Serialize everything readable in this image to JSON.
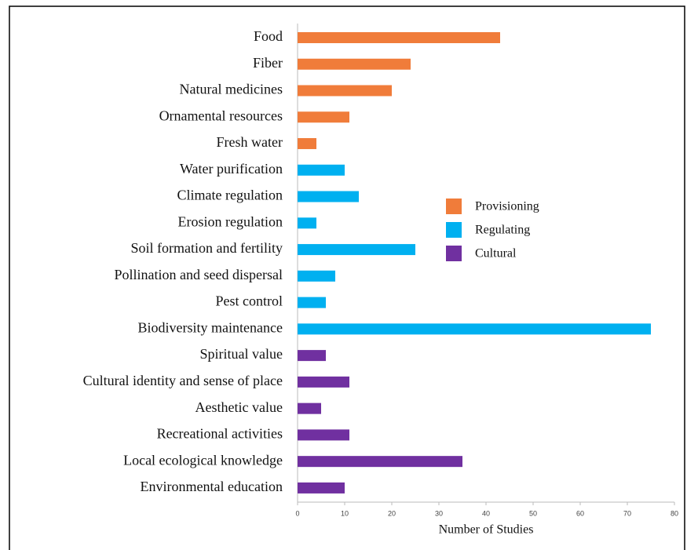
{
  "chart_data": {
    "type": "barh",
    "xlabel": "Number of Studies",
    "categories": [
      "Food",
      "Fiber",
      "Natural medicines",
      "Ornamental resources",
      "Fresh water",
      "Water purification",
      "Climate regulation",
      "Erosion regulation",
      "Soil formation and fertility",
      "Pollination and seed dispersal",
      "Pest control",
      "Biodiversity maintenance",
      "Spiritual value",
      "Cultural identity and sense of place",
      "Aesthetic value",
      "Recreational activities",
      "Local ecological knowledge",
      "Environmental education"
    ],
    "series": [
      {
        "name": "Provisioning",
        "color": "#f07c3a",
        "values": [
          43,
          24,
          20,
          11,
          4,
          null,
          null,
          null,
          null,
          null,
          null,
          null,
          null,
          null,
          null,
          null,
          null,
          null
        ]
      },
      {
        "name": "Regulating",
        "color": "#00b0f0",
        "values": [
          null,
          null,
          null,
          null,
          null,
          10,
          13,
          4,
          25,
          8,
          6,
          75,
          null,
          null,
          null,
          null,
          null,
          null
        ]
      },
      {
        "name": "Cultural",
        "color": "#7030a0",
        "values": [
          null,
          null,
          null,
          null,
          null,
          null,
          null,
          null,
          null,
          null,
          null,
          null,
          6,
          11,
          5,
          11,
          35,
          10
        ]
      }
    ],
    "xlim": [
      0,
      80
    ],
    "xticks": [
      0,
      10,
      20,
      30,
      40,
      50,
      60,
      70,
      80
    ],
    "legend": "right"
  }
}
